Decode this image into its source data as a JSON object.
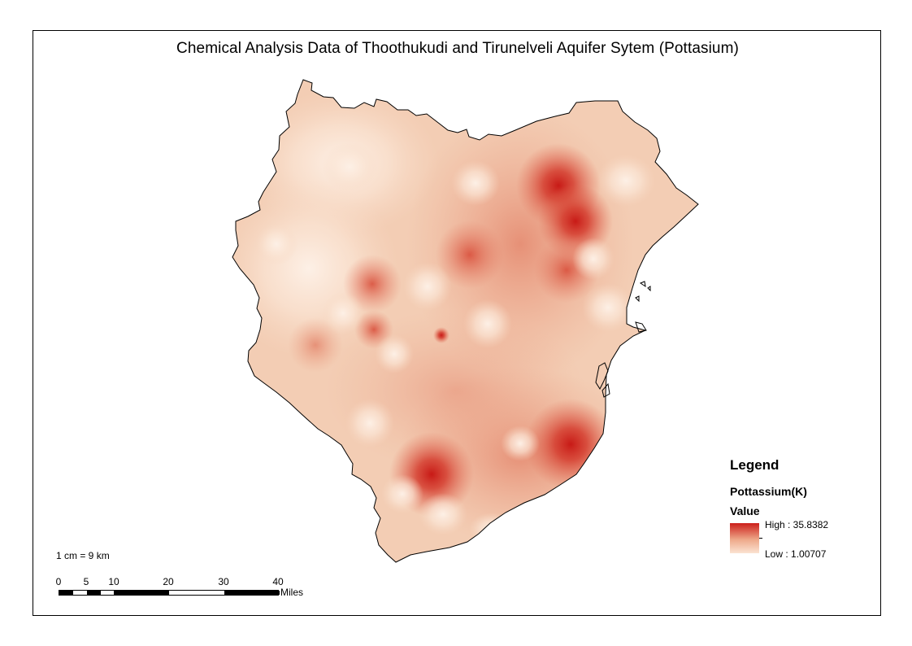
{
  "map": {
    "title": "Chemical Analysis Data of Thoothukudi and Tirunelveli Aquifer Sytem (Pottasium)",
    "legend": {
      "title": "Legend",
      "field": "Pottassium(K)",
      "subtitle": "Value",
      "high_label": "High : 35.8382",
      "low_label": "Low : 1.00707",
      "high_value": 35.8382,
      "low_value": 1.00707,
      "high_color": "#cc1f1a",
      "low_color": "#fbe3d2"
    },
    "scale": {
      "text": "1 cm = 9 km",
      "labels": [
        "0",
        "5",
        "10",
        "20",
        "30",
        "40"
      ],
      "unit": "Miles"
    }
  }
}
